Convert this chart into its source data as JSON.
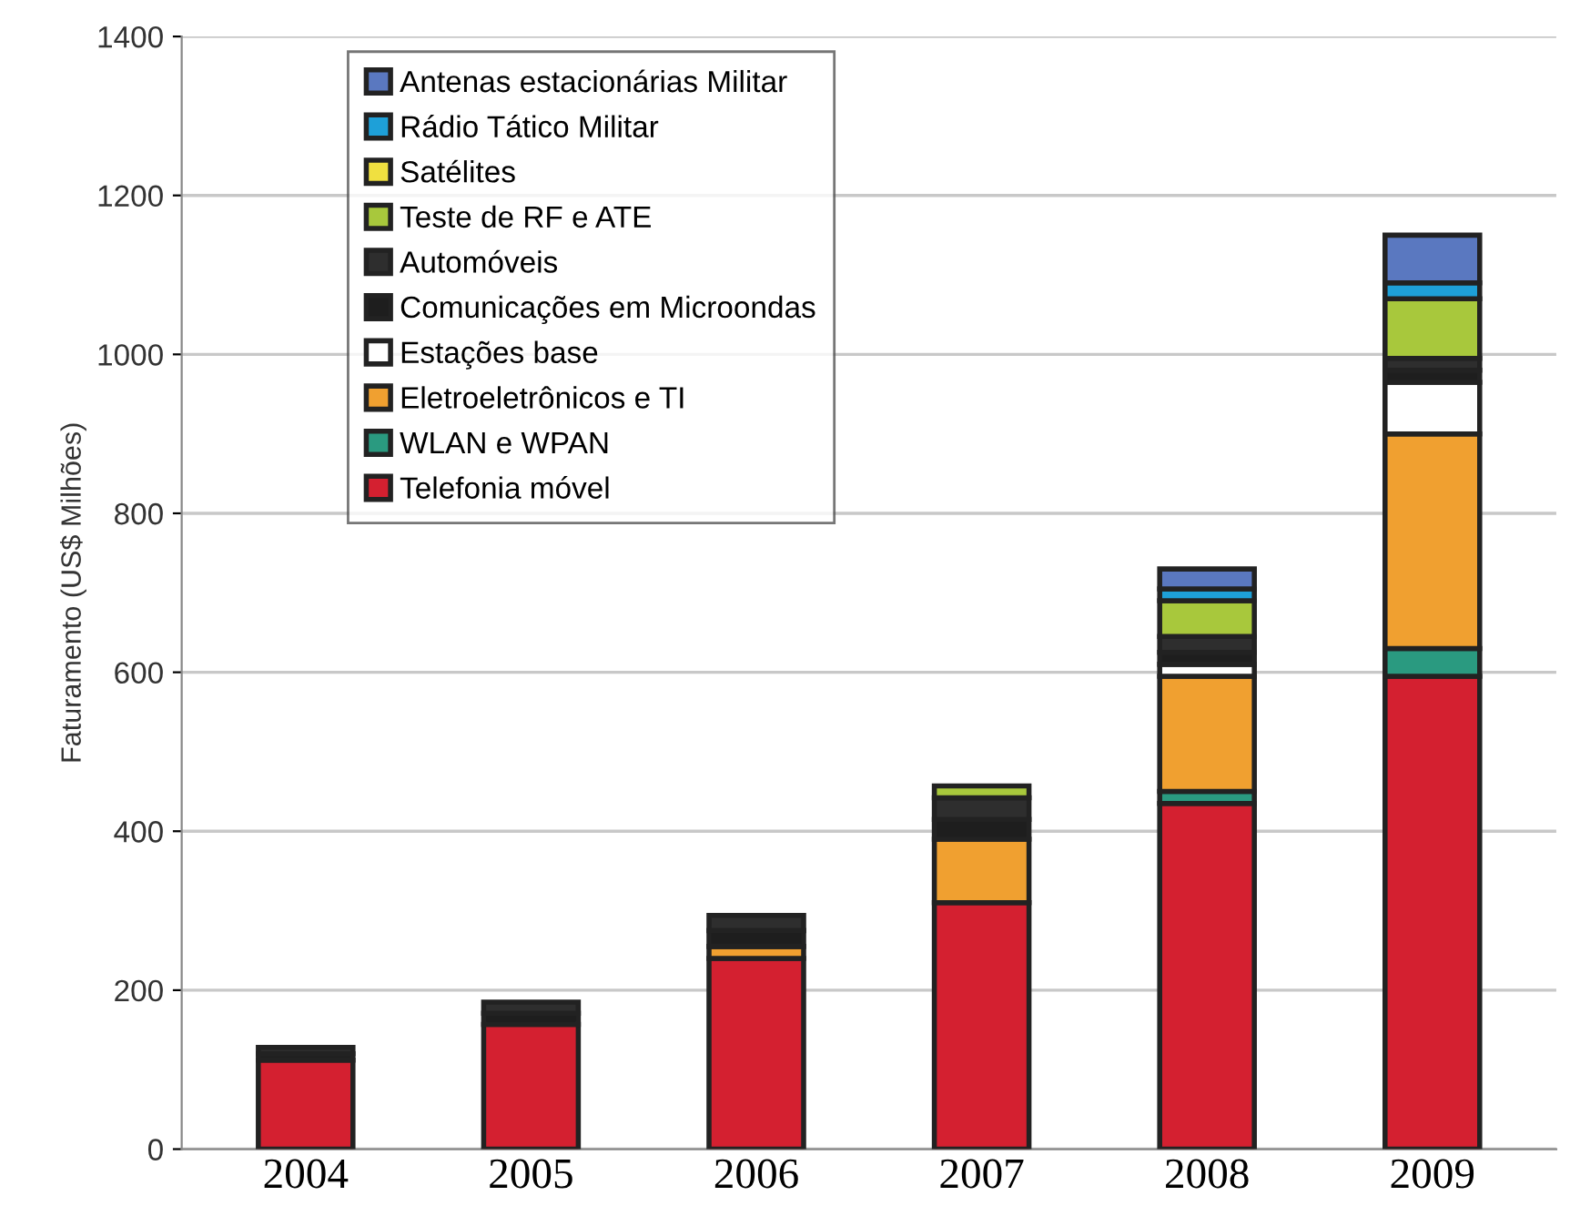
{
  "chart_data": {
    "type": "bar",
    "stacked": true,
    "ylabel": "Faturamento (US$ Milhões)",
    "categories": [
      "2004",
      "2005",
      "2006",
      "2007",
      "2008",
      "2009"
    ],
    "series": [
      {
        "name": "Telefonia móvel",
        "color": "#d42030",
        "values": [
          112,
          157,
          240,
          310,
          435,
          595
        ]
      },
      {
        "name": "WLAN e WPAN",
        "color": "#2a9a80",
        "values": [
          null,
          null,
          null,
          null,
          15,
          35
        ]
      },
      {
        "name": "Eletroeletrônicos e TI",
        "color": "#f0a030",
        "values": [
          null,
          null,
          15,
          80,
          145,
          270
        ]
      },
      {
        "name": "Estações base",
        "color": "#ffffff",
        "values": [
          null,
          null,
          null,
          null,
          15,
          65
        ]
      },
      {
        "name": "Comunicações em Microondas",
        "color": "#1e1e1e",
        "values": [
          8,
          14,
          20,
          25,
          15,
          15
        ]
      },
      {
        "name": "Automóveis",
        "color": "#2e2e2e",
        "values": [
          8,
          14,
          19,
          27,
          20,
          15
        ]
      },
      {
        "name": "Teste de RF e ATE",
        "color": "#a8c83c",
        "values": [
          null,
          null,
          null,
          15,
          45,
          75
        ]
      },
      {
        "name": "Satélites",
        "color": "#f0e040",
        "values": [
          null,
          null,
          null,
          null,
          null,
          null
        ]
      },
      {
        "name": "Rádio Tático Militar",
        "color": "#1ea0d8",
        "values": [
          null,
          null,
          null,
          null,
          15,
          20
        ]
      },
      {
        "name": "Antenas estacionárias Militar",
        "color": "#5a78c0",
        "values": [
          null,
          null,
          null,
          null,
          25,
          60
        ]
      }
    ],
    "ylim": [
      0,
      1400
    ],
    "yticks": [
      0,
      200,
      400,
      600,
      800,
      1000,
      1200,
      1400
    ],
    "grid": "y",
    "legend": "top left"
  }
}
